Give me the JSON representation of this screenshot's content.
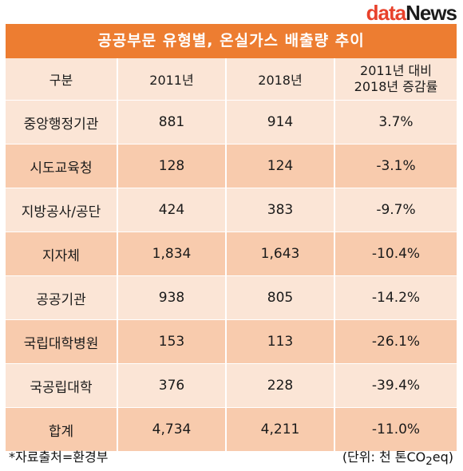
{
  "logo": {
    "part1": "data",
    "part2": "News"
  },
  "title": "공공부문 유형별, 온실가스 배출량 추이",
  "columns": {
    "category": "구분",
    "y2011": "2011년",
    "y2018": "2018년",
    "rate_line1": "2011년 대비",
    "rate_line2": "2018년 증감률"
  },
  "rows": [
    {
      "category": "중앙행정기관",
      "y2011": "881",
      "y2018": "914",
      "rate": "3.7%"
    },
    {
      "category": "시도교육청",
      "y2011": "128",
      "y2018": "124",
      "rate": "-3.1%"
    },
    {
      "category": "지방공사/공단",
      "y2011": "424",
      "y2018": "383",
      "rate": "-9.7%"
    },
    {
      "category": "지자체",
      "y2011": "1,834",
      "y2018": "1,643",
      "rate": "-10.4%"
    },
    {
      "category": "공공기관",
      "y2011": "938",
      "y2018": "805",
      "rate": "-14.2%"
    },
    {
      "category": "국립대학병원",
      "y2011": "153",
      "y2018": "113",
      "rate": "-26.1%"
    },
    {
      "category": "국공립대학",
      "y2011": "376",
      "y2018": "228",
      "rate": "-39.4%"
    },
    {
      "category": "합계",
      "y2011": "4,734",
      "y2018": "4,211",
      "rate": "-11.0%"
    }
  ],
  "footer": {
    "source": "*자료출처=환경부",
    "unit_prefix": "(단위: 천 톤CO",
    "unit_sub": "2",
    "unit_suffix": "eq)"
  },
  "colors": {
    "title_bg": "#ed7d31",
    "row_light": "#fbe5d6",
    "row_dark": "#f8cbad",
    "logo_accent": "#e8412b"
  }
}
